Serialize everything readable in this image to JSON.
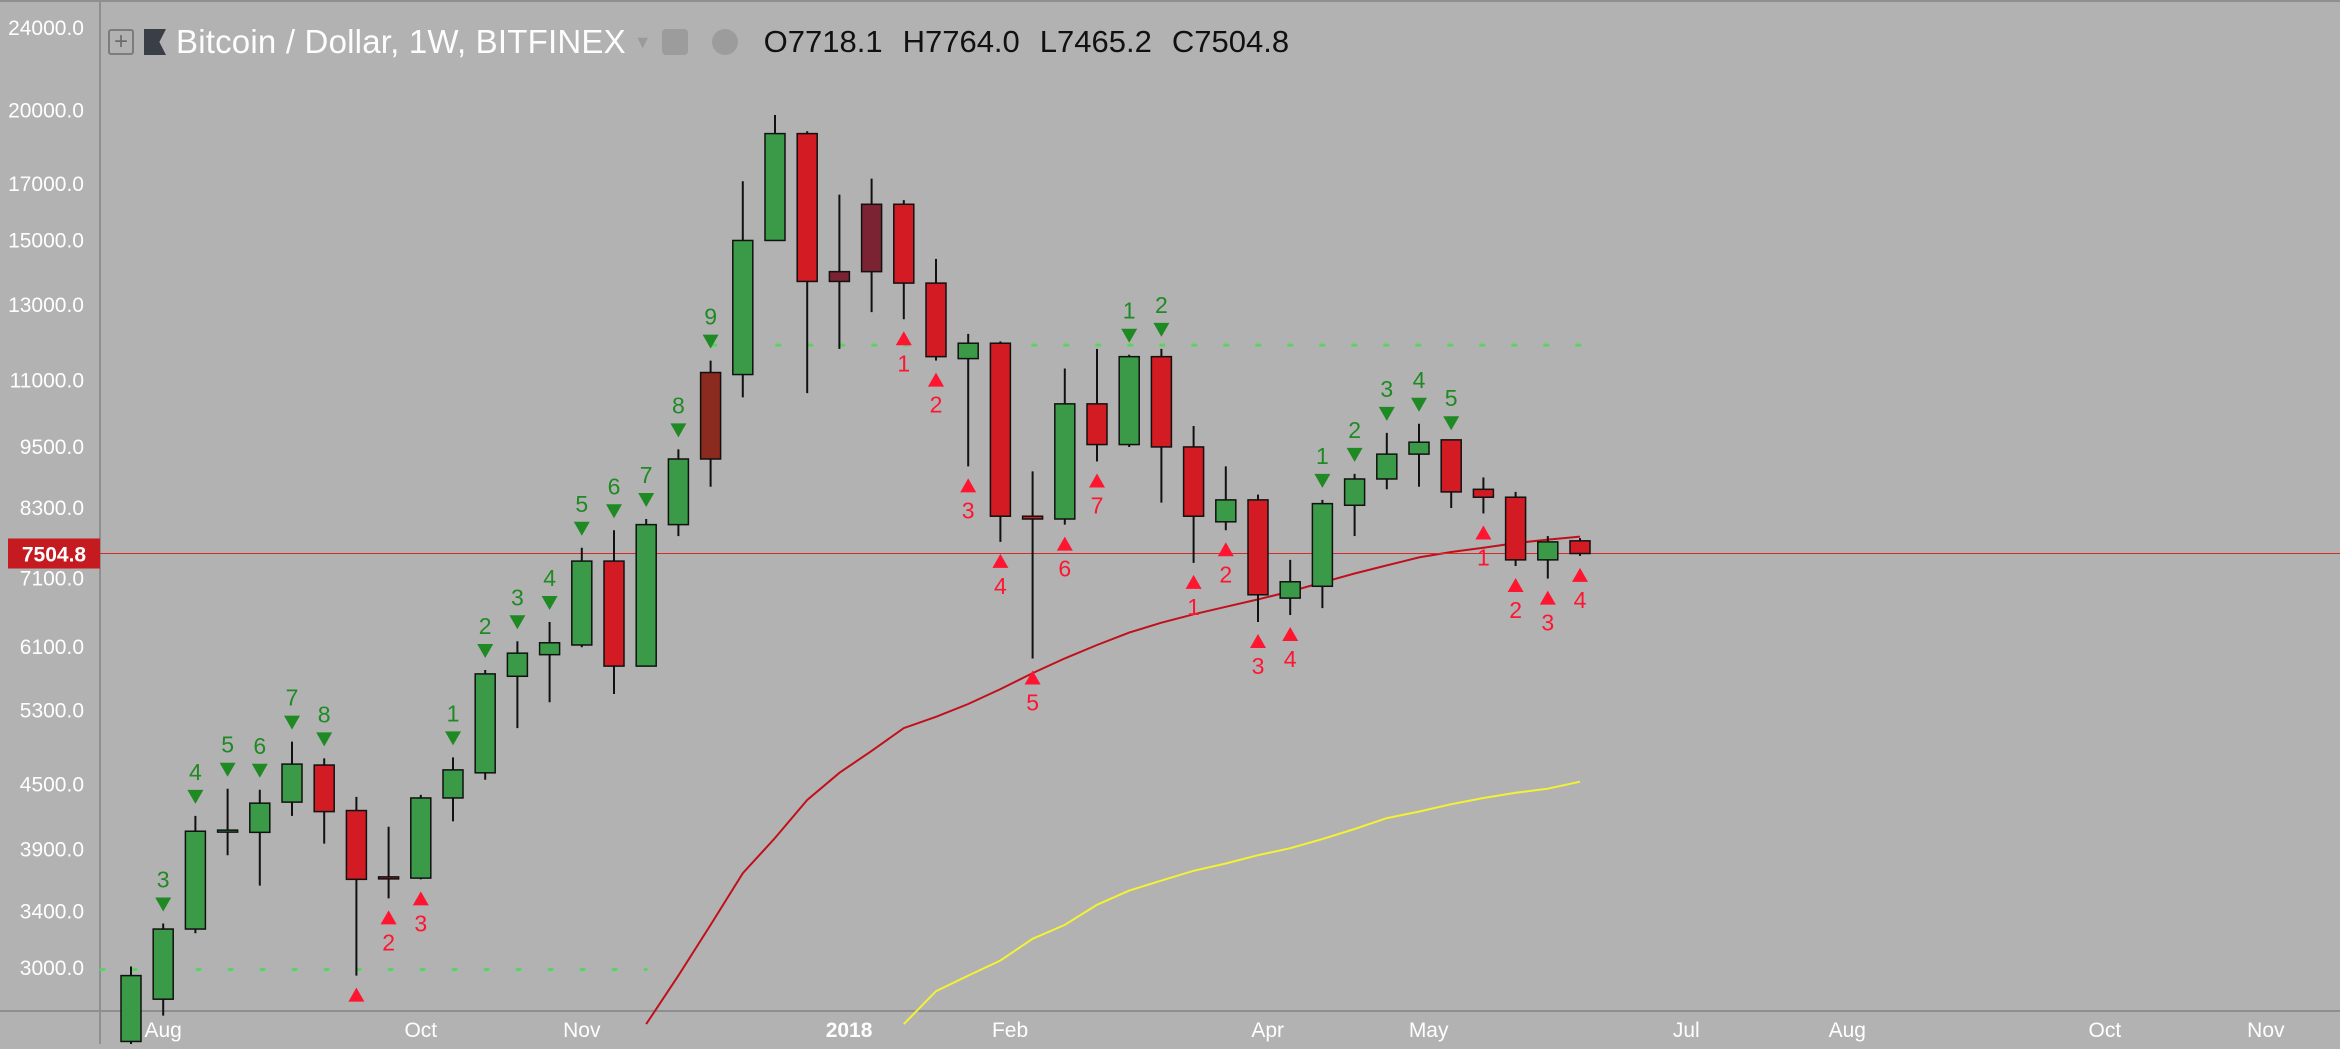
{
  "legend": {
    "symbol": "Bitcoin / Dollar, 1W, BITFINEX",
    "open_label": "O",
    "open": "7718.1",
    "high_label": "H",
    "high": "7764.0",
    "low_label": "L",
    "low": "7465.2",
    "close_label": "C",
    "close": "7504.8"
  },
  "chart_data": {
    "type": "candlestick",
    "symbol": "Bitcoin / Dollar, 1W, BITFINEX",
    "y_scale": "log",
    "ylim": [
      2640,
      25200
    ],
    "y_ticks": [
      3000,
      3400,
      3900,
      4500,
      5300,
      6100,
      7100,
      8300,
      9500,
      11000,
      13000,
      15000,
      17000,
      20000,
      24000
    ],
    "y_tick_labels": [
      "3000.0",
      "3400.0",
      "3900.0",
      "4500.0",
      "5300.0",
      "6100.0",
      "7100.0",
      "8300.0",
      "9500.0",
      "11000.0",
      "13000.0",
      "15000.0",
      "17000.0",
      "20000.0",
      "24000.0"
    ],
    "x_ticks": [
      {
        "label": "Aug",
        "week": 1
      },
      {
        "label": "Oct",
        "week": 9
      },
      {
        "label": "Nov",
        "week": 14
      },
      {
        "label": "2018",
        "week": 22.3
      },
      {
        "label": "Feb",
        "week": 27.3
      },
      {
        "label": "Apr",
        "week": 35.3
      },
      {
        "label": "May",
        "week": 40.3
      },
      {
        "label": "Jul",
        "week": 48.3
      },
      {
        "label": "Aug",
        "week": 53.3
      },
      {
        "label": "Oct",
        "week": 61.3
      },
      {
        "label": "Nov",
        "week": 66.3
      }
    ],
    "current_price": 7504.8,
    "current_price_label": "7504.8",
    "candles": [
      {
        "o": 2550,
        "h": 3010,
        "l": 2500,
        "c": 2950
      },
      {
        "o": 2800,
        "h": 3310,
        "l": 2700,
        "c": 3270
      },
      {
        "o": 3270,
        "h": 4200,
        "l": 3240,
        "c": 4060
      },
      {
        "o": 4060,
        "h": 4460,
        "l": 3850,
        "c": 4070
      },
      {
        "o": 4050,
        "h": 4450,
        "l": 3600,
        "c": 4320
      },
      {
        "o": 4330,
        "h": 4950,
        "l": 4200,
        "c": 4710
      },
      {
        "o": 4700,
        "h": 4770,
        "l": 3950,
        "c": 4240
      },
      {
        "o": 4250,
        "h": 4380,
        "l": 2950,
        "c": 3650
      },
      {
        "o": 3670,
        "h": 4100,
        "l": 3500,
        "c": 3660
      },
      {
        "o": 3660,
        "h": 4400,
        "l": 3650,
        "c": 4370
      },
      {
        "o": 4370,
        "h": 4780,
        "l": 4150,
        "c": 4650
      },
      {
        "o": 4620,
        "h": 5800,
        "l": 4550,
        "c": 5750
      },
      {
        "o": 5720,
        "h": 6180,
        "l": 5100,
        "c": 6020
      },
      {
        "o": 6000,
        "h": 6450,
        "l": 5400,
        "c": 6160
      },
      {
        "o": 6130,
        "h": 7600,
        "l": 6100,
        "c": 7380
      },
      {
        "o": 7380,
        "h": 7900,
        "l": 5500,
        "c": 5850
      },
      {
        "o": 5850,
        "h": 8100,
        "l": 5850,
        "c": 8000
      },
      {
        "o": 8000,
        "h": 9450,
        "l": 7800,
        "c": 9250
      },
      {
        "o": 11200,
        "h": 11500,
        "l": 8700,
        "c": 9250
      },
      {
        "o": 11150,
        "h": 17100,
        "l": 10600,
        "c": 15000
      },
      {
        "o": 15000,
        "h": 19800,
        "l": 15000,
        "c": 19000
      },
      {
        "o": 19000,
        "h": 19100,
        "l": 10700,
        "c": 13700
      },
      {
        "o": 13700,
        "h": 16600,
        "l": 11800,
        "c": 14000
      },
      {
        "o": 14000,
        "h": 17200,
        "l": 12800,
        "c": 16250
      },
      {
        "o": 16250,
        "h": 16400,
        "l": 12600,
        "c": 13650
      },
      {
        "o": 13650,
        "h": 14400,
        "l": 11500,
        "c": 11600
      },
      {
        "o": 11550,
        "h": 12200,
        "l": 9100,
        "c": 11950
      },
      {
        "o": 11950,
        "h": 12000,
        "l": 7700,
        "c": 8150
      },
      {
        "o": 8150,
        "h": 9000,
        "l": 5950,
        "c": 8100
      },
      {
        "o": 8100,
        "h": 11300,
        "l": 8000,
        "c": 10450
      },
      {
        "o": 10450,
        "h": 11800,
        "l": 9200,
        "c": 9550
      },
      {
        "o": 9550,
        "h": 11650,
        "l": 9500,
        "c": 11600
      },
      {
        "o": 11600,
        "h": 11800,
        "l": 8400,
        "c": 9500
      },
      {
        "o": 9500,
        "h": 9950,
        "l": 7350,
        "c": 8150
      },
      {
        "o": 8050,
        "h": 9100,
        "l": 7900,
        "c": 8450
      },
      {
        "o": 8450,
        "h": 8550,
        "l": 6450,
        "c": 6850
      },
      {
        "o": 6800,
        "h": 7400,
        "l": 6550,
        "c": 7050
      },
      {
        "o": 6980,
        "h": 8450,
        "l": 6650,
        "c": 8380
      },
      {
        "o": 8350,
        "h": 8950,
        "l": 7800,
        "c": 8850
      },
      {
        "o": 8850,
        "h": 9800,
        "l": 8650,
        "c": 9350
      },
      {
        "o": 9350,
        "h": 10000,
        "l": 8700,
        "c": 9600
      },
      {
        "o": 9650,
        "h": 9600,
        "l": 8300,
        "c": 8600
      },
      {
        "o": 8650,
        "h": 8880,
        "l": 8200,
        "c": 8500
      },
      {
        "o": 8500,
        "h": 8600,
        "l": 7300,
        "c": 7400
      },
      {
        "o": 7400,
        "h": 7800,
        "l": 7100,
        "c": 7700
      },
      {
        "o": 7718.1,
        "h": 7764.0,
        "l": 7465.2,
        "c": 7504.8
      }
    ],
    "neutral_candles": [
      3,
      8,
      22,
      23
    ],
    "sell_setup": [
      {
        "week": 1,
        "label": "3"
      },
      {
        "week": 2,
        "label": "4"
      },
      {
        "week": 3,
        "label": "5"
      },
      {
        "week": 4,
        "label": "6"
      },
      {
        "week": 5,
        "label": "7"
      },
      {
        "week": 6,
        "label": "8"
      },
      {
        "week": 10,
        "label": "1"
      },
      {
        "week": 11,
        "label": "2"
      },
      {
        "week": 12,
        "label": "3"
      },
      {
        "week": 13,
        "label": "4"
      },
      {
        "week": 14,
        "label": "5"
      },
      {
        "week": 15,
        "label": "6"
      },
      {
        "week": 16,
        "label": "7"
      },
      {
        "week": 17,
        "label": "8"
      },
      {
        "week": 18,
        "label": "9"
      },
      {
        "week": 31,
        "label": "1"
      },
      {
        "week": 32,
        "label": "2"
      },
      {
        "week": 37,
        "label": "1"
      },
      {
        "week": 38,
        "label": "2"
      },
      {
        "week": 39,
        "label": "3"
      },
      {
        "week": 40,
        "label": "4"
      },
      {
        "week": 41,
        "label": "5"
      }
    ],
    "buy_setup": [
      {
        "week": 7,
        "label": ""
      },
      {
        "week": 8,
        "label": "2"
      },
      {
        "week": 9,
        "label": "3"
      },
      {
        "week": 24,
        "label": "1"
      },
      {
        "week": 25,
        "label": "2"
      },
      {
        "week": 26,
        "label": "3"
      },
      {
        "week": 27,
        "label": "4"
      },
      {
        "week": 28,
        "label": "5"
      },
      {
        "week": 29,
        "label": "6"
      },
      {
        "week": 30,
        "label": "7"
      },
      {
        "week": 33,
        "label": "1"
      },
      {
        "week": 34,
        "label": "2"
      },
      {
        "week": 35,
        "label": "3"
      },
      {
        "week": 36,
        "label": "4"
      },
      {
        "week": 42,
        "label": "1"
      },
      {
        "week": 43,
        "label": "2"
      },
      {
        "week": 44,
        "label": "3"
      },
      {
        "week": 45,
        "label": "4"
      }
    ],
    "support_dotted": {
      "value": 2990,
      "from_week": 0,
      "to_week": 16
    },
    "resistance_dotted": {
      "value": 11900,
      "from_week": 19,
      "to_week": 45
    },
    "ma_red": [
      {
        "week": 16,
        "v": 2650
      },
      {
        "week": 17,
        "v": 2950
      },
      {
        "week": 18,
        "v": 3300
      },
      {
        "week": 19,
        "v": 3700
      },
      {
        "week": 20,
        "v": 4000
      },
      {
        "week": 21,
        "v": 4350
      },
      {
        "week": 22,
        "v": 4620
      },
      {
        "week": 23,
        "v": 4850
      },
      {
        "week": 24,
        "v": 5100
      },
      {
        "week": 25,
        "v": 5230
      },
      {
        "week": 26,
        "v": 5380
      },
      {
        "week": 27,
        "v": 5560
      },
      {
        "week": 28,
        "v": 5760
      },
      {
        "week": 29,
        "v": 5950
      },
      {
        "week": 30,
        "v": 6130
      },
      {
        "week": 31,
        "v": 6300
      },
      {
        "week": 32,
        "v": 6440
      },
      {
        "week": 33,
        "v": 6560
      },
      {
        "week": 34,
        "v": 6670
      },
      {
        "week": 35,
        "v": 6780
      },
      {
        "week": 36,
        "v": 6900
      },
      {
        "week": 37,
        "v": 7040
      },
      {
        "week": 38,
        "v": 7180
      },
      {
        "week": 39,
        "v": 7310
      },
      {
        "week": 40,
        "v": 7440
      },
      {
        "week": 41,
        "v": 7530
      },
      {
        "week": 42,
        "v": 7600
      },
      {
        "week": 43,
        "v": 7680
      },
      {
        "week": 44,
        "v": 7740
      },
      {
        "week": 45,
        "v": 7790
      }
    ],
    "ma_yellow": [
      {
        "week": 24,
        "v": 2650
      },
      {
        "week": 25,
        "v": 2850
      },
      {
        "week": 26,
        "v": 2950
      },
      {
        "week": 27,
        "v": 3050
      },
      {
        "week": 28,
        "v": 3200
      },
      {
        "week": 29,
        "v": 3300
      },
      {
        "week": 30,
        "v": 3450
      },
      {
        "week": 31,
        "v": 3560
      },
      {
        "week": 32,
        "v": 3640
      },
      {
        "week": 33,
        "v": 3720
      },
      {
        "week": 34,
        "v": 3780
      },
      {
        "week": 35,
        "v": 3850
      },
      {
        "week": 36,
        "v": 3910
      },
      {
        "week": 37,
        "v": 3990
      },
      {
        "week": 38,
        "v": 4080
      },
      {
        "week": 39,
        "v": 4180
      },
      {
        "week": 40,
        "v": 4240
      },
      {
        "week": 41,
        "v": 4310
      },
      {
        "week": 42,
        "v": 4370
      },
      {
        "week": 43,
        "v": 4420
      },
      {
        "week": 44,
        "v": 4460
      },
      {
        "week": 45,
        "v": 4530
      }
    ],
    "colors": {
      "background": "#b2b2b2",
      "up": "#3b9a48",
      "down": "#d21b22",
      "neutral_down": "#7c2333",
      "neutral_up": "#8b2a1e",
      "sell_marker": "#1f8a24",
      "buy_marker": "#ff1530",
      "ma_red": "#c0101c",
      "ma_yellow": "#f4f233",
      "dotted": "#53d85a",
      "price_line": "#d92a2a",
      "axis_text": "#ffffff"
    }
  }
}
